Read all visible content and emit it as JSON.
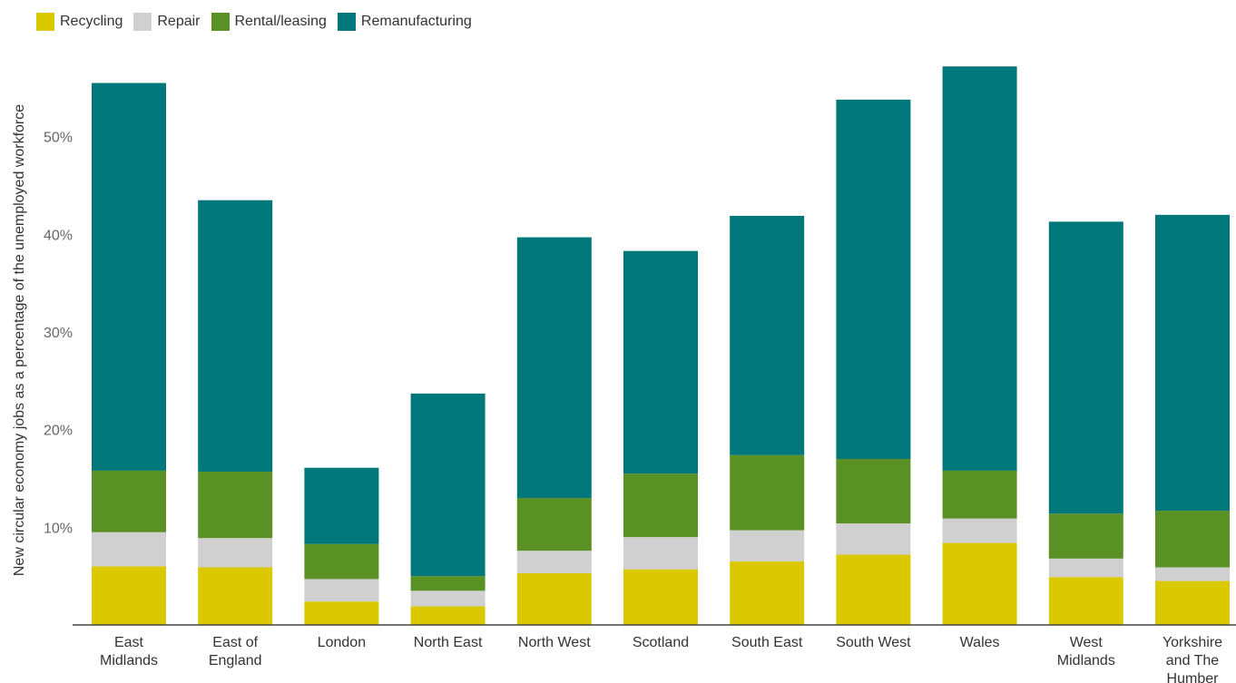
{
  "chart_data": {
    "type": "bar",
    "stacked": true,
    "ylabel": "New circular economy jobs as a percentage of the unemployed workforce",
    "xlabel": "",
    "ylim": [
      0,
      57.5
    ],
    "yticks": [
      10,
      20,
      30,
      40,
      50
    ],
    "ytick_labels": [
      "10%",
      "20%",
      "30%",
      "40%",
      "50%"
    ],
    "legend_position": "top-left",
    "grid": false,
    "categories": [
      [
        "East",
        "Midlands"
      ],
      [
        "East of",
        "England"
      ],
      [
        "London"
      ],
      [
        "North East"
      ],
      [
        "North West"
      ],
      [
        "Scotland"
      ],
      [
        "South East"
      ],
      [
        "South West"
      ],
      [
        "Wales"
      ],
      [
        "West",
        "Midlands"
      ],
      [
        "Yorkshire",
        "and The",
        "Humber"
      ]
    ],
    "series": [
      {
        "name": "Recycling",
        "color": "#dbc900",
        "values": [
          6.0,
          5.9,
          2.4,
          1.9,
          5.3,
          5.7,
          6.5,
          7.2,
          8.4,
          4.9,
          4.5
        ]
      },
      {
        "name": "Repair",
        "color": "#d0d0d0",
        "values": [
          3.5,
          3.0,
          2.3,
          1.6,
          2.3,
          3.3,
          3.2,
          3.2,
          2.5,
          1.9,
          1.4
        ]
      },
      {
        "name": "Rental/leasing",
        "color": "#5a9124",
        "values": [
          6.3,
          6.8,
          3.6,
          1.5,
          5.4,
          6.5,
          7.7,
          6.6,
          4.9,
          4.6,
          5.8
        ]
      },
      {
        "name": "Remanufacturing",
        "color": "#00777b",
        "values": [
          39.7,
          27.8,
          7.8,
          18.7,
          26.7,
          22.8,
          24.5,
          36.8,
          41.4,
          29.9,
          30.3
        ]
      }
    ]
  }
}
